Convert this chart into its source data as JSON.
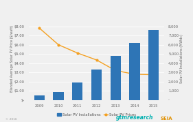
{
  "years": [
    2009,
    2010,
    2011,
    2012,
    2013,
    2014,
    2015
  ],
  "installations_mwdc": [
    500,
    900,
    1900,
    3300,
    4800,
    6200,
    7600
  ],
  "pv_prices_dollar": [
    7.8,
    6.0,
    5.1,
    4.35,
    3.2,
    2.8,
    2.75
  ],
  "bar_color": "#2e75b6",
  "line_color": "#f4a020",
  "left_ylim": [
    0,
    9
  ],
  "left_yticks": [
    0,
    1,
    2,
    3,
    4,
    5,
    6,
    7,
    8
  ],
  "left_yticklabels": [
    "$-",
    "$1.00",
    "$2.00",
    "$3.00",
    "$4.00",
    "$5.00",
    "$6.00",
    "$7.00",
    "$8.00"
  ],
  "right_ylim": [
    0,
    9000
  ],
  "right_yticks": [
    0,
    1000,
    2000,
    3000,
    4000,
    5000,
    6000,
    7000,
    8000
  ],
  "right_yticklabels": [
    "-",
    "1,000",
    "2,000",
    "3,000",
    "4,000",
    "5,000",
    "6,000",
    "7,000",
    "8,000"
  ],
  "left_ylabel": "Blended Average Solar PV Price ($/watt)",
  "right_ylabel": "Solar PV Installations (MWdc)",
  "background_color": "#f0f0f0",
  "grid_color": "#ffffff",
  "legend_bar_label": "Solar PV Installations",
  "legend_line_label": "Solar PV Prices",
  "footer_left": "© 2016",
  "footer_gtm": "gtmresearch",
  "footer_seia": "SEIA",
  "tick_fontsize": 3.8,
  "label_fontsize": 3.5
}
